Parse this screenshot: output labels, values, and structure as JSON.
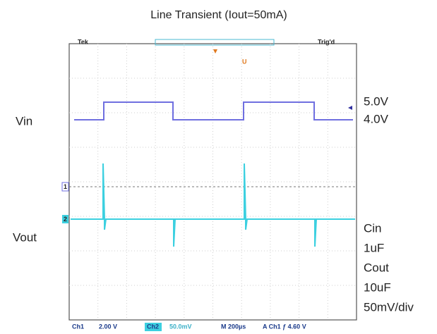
{
  "title": "Line Transient (Iout=50mA)",
  "scope": {
    "brand": "Tek",
    "status": "Trig'd",
    "ch1_marker": "1",
    "ch2_marker": "2",
    "trigger_marker": "U"
  },
  "left_labels": [
    "Vin",
    "Vout"
  ],
  "right_labels": [
    "5.0V",
    "4.0V",
    "Cin",
    "1uF",
    "Cout",
    "10uF",
    "50mV/div"
  ],
  "status_bar": {
    "ch1": "Ch1",
    "ch1_scale": "2.00 V",
    "ch2": "Ch2",
    "ch2_scale": "50.0mV",
    "timebase": "M 200µs",
    "trigger": "A  Ch1  ƒ  4.60 V"
  }
}
